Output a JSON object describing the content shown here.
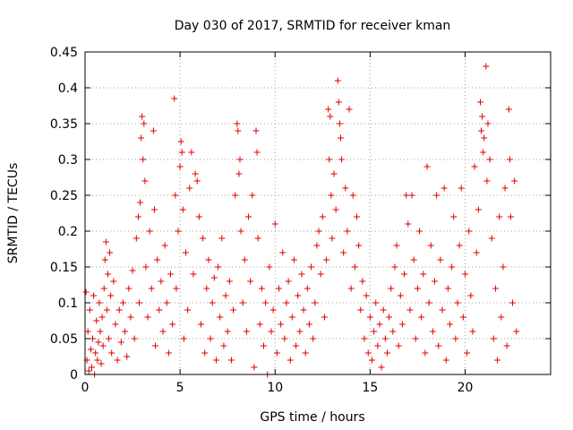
{
  "chart_data": {
    "type": "scatter",
    "title": "Day 030 of 2017, SRMTID for receiver kman",
    "xlabel": "GPS time / hours",
    "ylabel": "SRMTID / TECUs",
    "xlim": [
      0,
      24.5
    ],
    "ylim": [
      0,
      0.45
    ],
    "x_ticks": [
      0,
      5,
      10,
      15,
      20
    ],
    "y_ticks": [
      0,
      0.05,
      0.1,
      0.15,
      0.2,
      0.25,
      0.3,
      0.35,
      0.4,
      0.45
    ],
    "x_tick_labels": [
      "0",
      "5",
      "10",
      "15",
      "20"
    ],
    "y_tick_labels": [
      "0",
      "0.05",
      "0.1",
      "0.15",
      "0.2",
      "0.25",
      "0.3",
      "0.35",
      "0.4",
      "0.45"
    ],
    "grid": true,
    "marker": "+",
    "marker_color": "#e00000",
    "series": [
      {
        "name": "SRMTID",
        "points": [
          [
            0.05,
            0.115
          ],
          [
            0.1,
            0.02
          ],
          [
            0.15,
            0.06
          ],
          [
            0.2,
            0.005
          ],
          [
            0.25,
            0.09
          ],
          [
            0.3,
            0.035
          ],
          [
            0.35,
            0.01
          ],
          [
            0.4,
            0.05
          ],
          [
            0.45,
            0.11
          ],
          [
            0.5,
            0.0
          ],
          [
            0.55,
            0.03
          ],
          [
            0.6,
            0.075
          ],
          [
            0.65,
            0.02
          ],
          [
            0.7,
            0.045
          ],
          [
            0.75,
            0.1
          ],
          [
            0.8,
            0.06
          ],
          [
            0.85,
            0.015
          ],
          [
            0.9,
            0.08
          ],
          [
            0.95,
            0.04
          ],
          [
            1.0,
            0.12
          ],
          [
            1.05,
            0.16
          ],
          [
            1.1,
            0.185
          ],
          [
            1.15,
            0.09
          ],
          [
            1.2,
            0.14
          ],
          [
            1.25,
            0.05
          ],
          [
            1.3,
            0.17
          ],
          [
            1.35,
            0.11
          ],
          [
            1.4,
            0.03
          ],
          [
            1.5,
            0.13
          ],
          [
            1.6,
            0.07
          ],
          [
            1.7,
            0.02
          ],
          [
            1.8,
            0.09
          ],
          [
            1.9,
            0.045
          ],
          [
            2.0,
            0.1
          ],
          [
            2.1,
            0.06
          ],
          [
            2.2,
            0.025
          ],
          [
            2.3,
            0.12
          ],
          [
            2.4,
            0.08
          ],
          [
            2.5,
            0.145
          ],
          [
            2.6,
            0.05
          ],
          [
            2.7,
            0.19
          ],
          [
            2.8,
            0.22
          ],
          [
            2.85,
            0.1
          ],
          [
            2.9,
            0.24
          ],
          [
            2.95,
            0.33
          ],
          [
            3.0,
            0.36
          ],
          [
            3.05,
            0.3
          ],
          [
            3.1,
            0.35
          ],
          [
            3.15,
            0.27
          ],
          [
            3.2,
            0.15
          ],
          [
            3.3,
            0.08
          ],
          [
            3.4,
            0.2
          ],
          [
            3.5,
            0.12
          ],
          [
            3.6,
            0.34
          ],
          [
            3.65,
            0.23
          ],
          [
            3.7,
            0.04
          ],
          [
            3.8,
            0.16
          ],
          [
            3.9,
            0.09
          ],
          [
            4.0,
            0.13
          ],
          [
            4.1,
            0.06
          ],
          [
            4.2,
            0.18
          ],
          [
            4.3,
            0.1
          ],
          [
            4.4,
            0.03
          ],
          [
            4.5,
            0.14
          ],
          [
            4.6,
            0.07
          ],
          [
            4.7,
            0.385
          ],
          [
            4.75,
            0.25
          ],
          [
            4.8,
            0.12
          ],
          [
            4.9,
            0.2
          ],
          [
            5.0,
            0.29
          ],
          [
            5.05,
            0.325
          ],
          [
            5.1,
            0.31
          ],
          [
            5.15,
            0.23
          ],
          [
            5.2,
            0.05
          ],
          [
            5.3,
            0.17
          ],
          [
            5.4,
            0.09
          ],
          [
            5.5,
            0.26
          ],
          [
            5.6,
            0.31
          ],
          [
            5.7,
            0.14
          ],
          [
            5.8,
            0.28
          ],
          [
            5.9,
            0.27
          ],
          [
            6.0,
            0.22
          ],
          [
            6.1,
            0.07
          ],
          [
            6.2,
            0.19
          ],
          [
            6.3,
            0.03
          ],
          [
            6.4,
            0.12
          ],
          [
            6.5,
            0.16
          ],
          [
            6.6,
            0.05
          ],
          [
            6.7,
            0.1
          ],
          [
            6.8,
            0.135
          ],
          [
            6.9,
            0.02
          ],
          [
            7.0,
            0.15
          ],
          [
            7.1,
            0.08
          ],
          [
            7.2,
            0.19
          ],
          [
            7.3,
            0.04
          ],
          [
            7.4,
            0.11
          ],
          [
            7.5,
            0.06
          ],
          [
            7.6,
            0.13
          ],
          [
            7.7,
            0.02
          ],
          [
            7.8,
            0.09
          ],
          [
            7.9,
            0.25
          ],
          [
            8.0,
            0.35
          ],
          [
            8.05,
            0.34
          ],
          [
            8.1,
            0.28
          ],
          [
            8.15,
            0.3
          ],
          [
            8.2,
            0.2
          ],
          [
            8.3,
            0.1
          ],
          [
            8.4,
            0.16
          ],
          [
            8.5,
            0.06
          ],
          [
            8.6,
            0.22
          ],
          [
            8.7,
            0.13
          ],
          [
            8.8,
            0.25
          ],
          [
            8.9,
            0.01
          ],
          [
            9.0,
            0.34
          ],
          [
            9.05,
            0.31
          ],
          [
            9.1,
            0.19
          ],
          [
            9.2,
            0.07
          ],
          [
            9.3,
            0.12
          ],
          [
            9.4,
            0.04
          ],
          [
            9.5,
            0.1
          ],
          [
            9.6,
            0.0
          ],
          [
            9.7,
            0.15
          ],
          [
            9.8,
            0.06
          ],
          [
            9.9,
            0.09
          ],
          [
            10.0,
            0.21
          ],
          [
            10.1,
            0.03
          ],
          [
            10.2,
            0.12
          ],
          [
            10.3,
            0.07
          ],
          [
            10.4,
            0.17
          ],
          [
            10.5,
            0.05
          ],
          [
            10.6,
            0.1
          ],
          [
            10.7,
            0.13
          ],
          [
            10.8,
            0.02
          ],
          [
            10.9,
            0.08
          ],
          [
            11.0,
            0.16
          ],
          [
            11.1,
            0.04
          ],
          [
            11.2,
            0.11
          ],
          [
            11.3,
            0.06
          ],
          [
            11.4,
            0.14
          ],
          [
            11.5,
            0.09
          ],
          [
            11.6,
            0.03
          ],
          [
            11.7,
            0.12
          ],
          [
            11.8,
            0.07
          ],
          [
            11.9,
            0.15
          ],
          [
            12.0,
            0.05
          ],
          [
            12.1,
            0.1
          ],
          [
            12.2,
            0.18
          ],
          [
            12.3,
            0.2
          ],
          [
            12.4,
            0.14
          ],
          [
            12.5,
            0.22
          ],
          [
            12.6,
            0.08
          ],
          [
            12.7,
            0.16
          ],
          [
            12.8,
            0.37
          ],
          [
            12.85,
            0.3
          ],
          [
            12.9,
            0.36
          ],
          [
            12.95,
            0.25
          ],
          [
            13.0,
            0.19
          ],
          [
            13.1,
            0.28
          ],
          [
            13.2,
            0.23
          ],
          [
            13.3,
            0.41
          ],
          [
            13.35,
            0.38
          ],
          [
            13.4,
            0.35
          ],
          [
            13.45,
            0.33
          ],
          [
            13.5,
            0.3
          ],
          [
            13.6,
            0.17
          ],
          [
            13.7,
            0.26
          ],
          [
            13.8,
            0.2
          ],
          [
            13.9,
            0.37
          ],
          [
            14.0,
            0.12
          ],
          [
            14.1,
            0.25
          ],
          [
            14.2,
            0.15
          ],
          [
            14.3,
            0.22
          ],
          [
            14.4,
            0.18
          ],
          [
            14.5,
            0.09
          ],
          [
            14.6,
            0.13
          ],
          [
            14.7,
            0.05
          ],
          [
            14.8,
            0.11
          ],
          [
            14.9,
            0.03
          ],
          [
            15.0,
            0.08
          ],
          [
            15.1,
            0.02
          ],
          [
            15.2,
            0.06
          ],
          [
            15.3,
            0.1
          ],
          [
            15.4,
            0.04
          ],
          [
            15.5,
            0.07
          ],
          [
            15.6,
            0.01
          ],
          [
            15.7,
            0.09
          ],
          [
            15.8,
            0.05
          ],
          [
            15.9,
            0.03
          ],
          [
            16.0,
            0.08
          ],
          [
            16.1,
            0.12
          ],
          [
            16.2,
            0.06
          ],
          [
            16.3,
            0.15
          ],
          [
            16.4,
            0.18
          ],
          [
            16.5,
            0.04
          ],
          [
            16.6,
            0.11
          ],
          [
            16.7,
            0.07
          ],
          [
            16.8,
            0.14
          ],
          [
            16.9,
            0.25
          ],
          [
            17.0,
            0.21
          ],
          [
            17.1,
            0.09
          ],
          [
            17.2,
            0.25
          ],
          [
            17.3,
            0.16
          ],
          [
            17.4,
            0.05
          ],
          [
            17.5,
            0.12
          ],
          [
            17.6,
            0.2
          ],
          [
            17.7,
            0.08
          ],
          [
            17.8,
            0.14
          ],
          [
            17.9,
            0.03
          ],
          [
            18.0,
            0.29
          ],
          [
            18.1,
            0.1
          ],
          [
            18.2,
            0.18
          ],
          [
            18.3,
            0.06
          ],
          [
            18.4,
            0.13
          ],
          [
            18.5,
            0.25
          ],
          [
            18.6,
            0.04
          ],
          [
            18.7,
            0.16
          ],
          [
            18.8,
            0.09
          ],
          [
            18.9,
            0.26
          ],
          [
            19.0,
            0.02
          ],
          [
            19.1,
            0.12
          ],
          [
            19.2,
            0.07
          ],
          [
            19.3,
            0.15
          ],
          [
            19.4,
            0.22
          ],
          [
            19.5,
            0.05
          ],
          [
            19.6,
            0.1
          ],
          [
            19.7,
            0.18
          ],
          [
            19.8,
            0.26
          ],
          [
            19.9,
            0.08
          ],
          [
            20.0,
            0.14
          ],
          [
            20.1,
            0.03
          ],
          [
            20.2,
            0.2
          ],
          [
            20.3,
            0.11
          ],
          [
            20.4,
            0.06
          ],
          [
            20.5,
            0.29
          ],
          [
            20.6,
            0.17
          ],
          [
            20.7,
            0.23
          ],
          [
            20.8,
            0.38
          ],
          [
            20.85,
            0.34
          ],
          [
            20.9,
            0.36
          ],
          [
            20.95,
            0.31
          ],
          [
            21.0,
            0.33
          ],
          [
            21.1,
            0.43
          ],
          [
            21.15,
            0.27
          ],
          [
            21.2,
            0.35
          ],
          [
            21.3,
            0.3
          ],
          [
            21.4,
            0.19
          ],
          [
            21.5,
            0.05
          ],
          [
            21.6,
            0.12
          ],
          [
            21.7,
            0.02
          ],
          [
            21.8,
            0.22
          ],
          [
            21.9,
            0.08
          ],
          [
            22.0,
            0.15
          ],
          [
            22.1,
            0.26
          ],
          [
            22.2,
            0.04
          ],
          [
            22.3,
            0.37
          ],
          [
            22.35,
            0.3
          ],
          [
            22.4,
            0.22
          ],
          [
            22.5,
            0.1
          ],
          [
            22.6,
            0.27
          ],
          [
            22.7,
            0.06
          ]
        ]
      }
    ]
  }
}
